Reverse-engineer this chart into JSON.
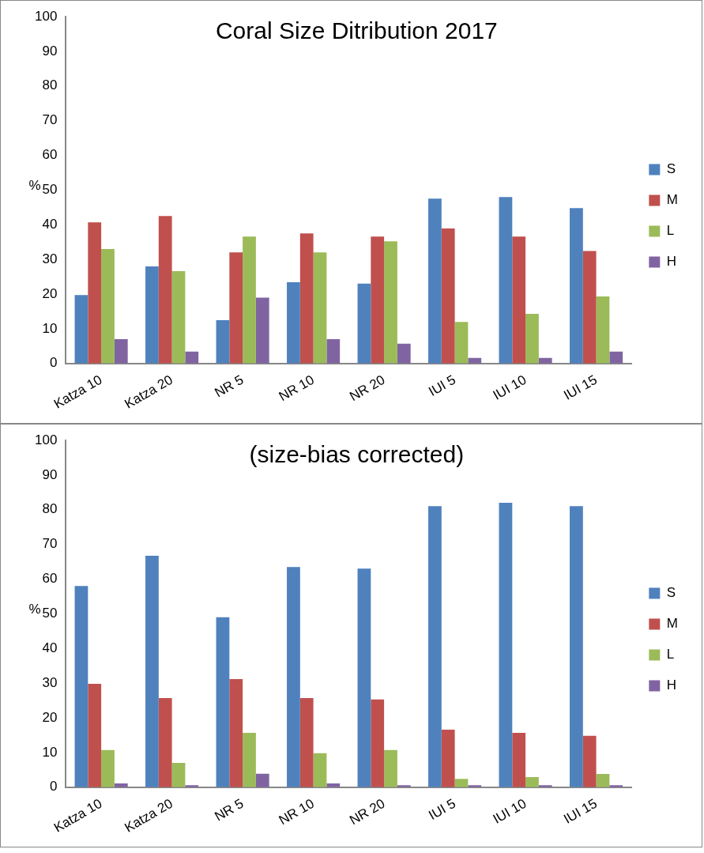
{
  "chart_data": [
    {
      "type": "bar",
      "title": "Coral Size Ditribution 2017",
      "ylabel": "%",
      "categories": [
        "Katza 10",
        "Katza 20",
        "NR 5",
        "NR 10",
        "NR 20",
        "IUI 5",
        "IUI 10",
        "IUI 15"
      ],
      "series": [
        {
          "name": "S",
          "color": "#4f81bd",
          "values": [
            19.7,
            28,
            12.5,
            23.4,
            23,
            47.5,
            48,
            44.8
          ]
        },
        {
          "name": "M",
          "color": "#c0504d",
          "values": [
            40.7,
            42.5,
            32,
            37.5,
            36.6,
            38.9,
            36.6,
            32.4
          ]
        },
        {
          "name": "L",
          "color": "#9bbb59",
          "values": [
            33,
            26.6,
            36.6,
            32,
            35.2,
            12,
            14.3,
            19.3
          ]
        },
        {
          "name": "H",
          "color": "#8064a2",
          "values": [
            7,
            3.4,
            19,
            7,
            5.7,
            1.6,
            1.6,
            3.4
          ]
        }
      ],
      "ylim": [
        0,
        100
      ],
      "yticks": [
        0,
        10,
        20,
        30,
        40,
        50,
        60,
        70,
        80,
        90,
        100
      ],
      "grid": false,
      "legend": "right"
    },
    {
      "type": "bar",
      "title": "(size-bias corrected)",
      "ylabel": "%",
      "categories": [
        "Katza 10",
        "Katza 20",
        "NR 5",
        "NR 10",
        "NR 20",
        "IUI 5",
        "IUI 10",
        "IUI 15"
      ],
      "series": [
        {
          "name": "S",
          "color": "#4f81bd",
          "values": [
            58,
            66.7,
            49,
            63.5,
            63,
            81,
            82,
            81
          ]
        },
        {
          "name": "M",
          "color": "#c0504d",
          "values": [
            29.8,
            25.7,
            31.2,
            25.7,
            25.3,
            16.6,
            15.7,
            14.8
          ]
        },
        {
          "name": "L",
          "color": "#9bbb59",
          "values": [
            10.7,
            7,
            15.7,
            9.8,
            10.7,
            2.4,
            2.9,
            3.8
          ]
        },
        {
          "name": "H",
          "color": "#8064a2",
          "values": [
            1.1,
            0.6,
            3.9,
            1.1,
            0.6,
            0.6,
            0.6,
            0.6
          ]
        }
      ],
      "ylim": [
        0,
        100
      ],
      "yticks": [
        0,
        10,
        20,
        30,
        40,
        50,
        60,
        70,
        80,
        90,
        100
      ],
      "grid": false,
      "legend": "right"
    }
  ]
}
